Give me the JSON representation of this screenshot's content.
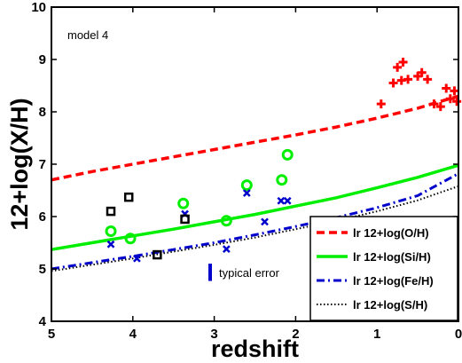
{
  "chart_data": {
    "type": "line",
    "annotation": "model 4",
    "xlabel": "redshift",
    "ylabel": "12+log(X/H)",
    "xlim": [
      5,
      0
    ],
    "ylim": [
      4,
      10
    ],
    "x_ticks": [
      5,
      4,
      3,
      2,
      1,
      0
    ],
    "y_ticks": [
      4,
      5,
      6,
      7,
      8,
      9,
      10
    ],
    "grid": false,
    "legend_position": "bottom-right",
    "colors": {
      "oxygen": "#ff0000",
      "silicon": "#00ee00",
      "iron": "#0000cc",
      "sulfur": "#000000",
      "frame": "#000000"
    },
    "series": [
      {
        "name": "lr 12+log(O/H)",
        "style": "dashed",
        "color_key": "oxygen",
        "x": [
          5,
          4.5,
          4,
          3.5,
          3,
          2.5,
          2,
          1.5,
          1,
          0.5,
          0
        ],
        "y": [
          6.7,
          6.86,
          7.0,
          7.14,
          7.28,
          7.42,
          7.56,
          7.71,
          7.88,
          8.07,
          8.3
        ]
      },
      {
        "name": "lr 12+log(Si/H)",
        "style": "solid",
        "color_key": "silicon",
        "x": [
          5,
          4.5,
          4,
          3.5,
          3,
          2.5,
          2,
          1.5,
          1,
          0.5,
          0
        ],
        "y": [
          5.37,
          5.5,
          5.63,
          5.76,
          5.9,
          6.04,
          6.2,
          6.36,
          6.55,
          6.75,
          6.98
        ]
      },
      {
        "name": "lr 12+log(Fe/H)",
        "style": "dashdot",
        "color_key": "iron",
        "x": [
          5,
          4.5,
          4,
          3.5,
          3,
          2.5,
          2,
          1.5,
          1,
          0.5,
          0
        ],
        "y": [
          5.0,
          5.12,
          5.24,
          5.37,
          5.5,
          5.65,
          5.81,
          5.98,
          6.17,
          6.4,
          6.82
        ]
      },
      {
        "name": "lr 12+log(S/H)",
        "style": "dotted",
        "color_key": "sulfur",
        "x": [
          5,
          4.5,
          4,
          3.5,
          3,
          2.5,
          2,
          1.5,
          1,
          0.5,
          0
        ],
        "y": [
          4.96,
          5.08,
          5.2,
          5.33,
          5.46,
          5.6,
          5.76,
          5.92,
          6.1,
          6.31,
          6.58
        ]
      }
    ],
    "observations": [
      {
        "marker": "plus",
        "color_key": "oxygen",
        "points": [
          [
            0.95,
            8.15
          ],
          [
            0.8,
            8.55
          ],
          [
            0.75,
            8.85
          ],
          [
            0.7,
            8.6
          ],
          [
            0.68,
            8.95
          ],
          [
            0.62,
            8.62
          ],
          [
            0.5,
            8.68
          ],
          [
            0.45,
            8.75
          ],
          [
            0.38,
            8.62
          ],
          [
            0.3,
            8.15
          ],
          [
            0.22,
            8.1
          ],
          [
            0.15,
            8.45
          ],
          [
            0.1,
            8.25
          ],
          [
            0.05,
            8.4
          ],
          [
            0.02,
            8.2
          ]
        ]
      },
      {
        "marker": "circle",
        "color_key": "silicon",
        "points": [
          [
            4.27,
            5.72
          ],
          [
            4.03,
            5.58
          ],
          [
            3.38,
            6.25
          ],
          [
            2.85,
            5.92
          ],
          [
            2.6,
            6.6
          ],
          [
            2.17,
            6.7
          ],
          [
            2.1,
            7.18
          ]
        ]
      },
      {
        "marker": "x",
        "color_key": "iron",
        "points": [
          [
            4.27,
            5.47
          ],
          [
            3.95,
            5.2
          ],
          [
            3.36,
            6.05
          ],
          [
            2.85,
            5.38
          ],
          [
            2.6,
            6.45
          ],
          [
            2.38,
            5.9
          ],
          [
            2.18,
            6.3
          ],
          [
            2.1,
            6.3
          ]
        ]
      },
      {
        "marker": "square",
        "color_key": "sulfur",
        "points": [
          [
            4.27,
            6.1
          ],
          [
            4.05,
            6.37
          ],
          [
            3.7,
            5.27
          ],
          [
            3.36,
            5.95
          ]
        ]
      }
    ],
    "typical_error": {
      "label": "typical error",
      "x": 3.05,
      "y_low": 4.77,
      "y_high": 5.1,
      "color_key": "iron"
    }
  }
}
